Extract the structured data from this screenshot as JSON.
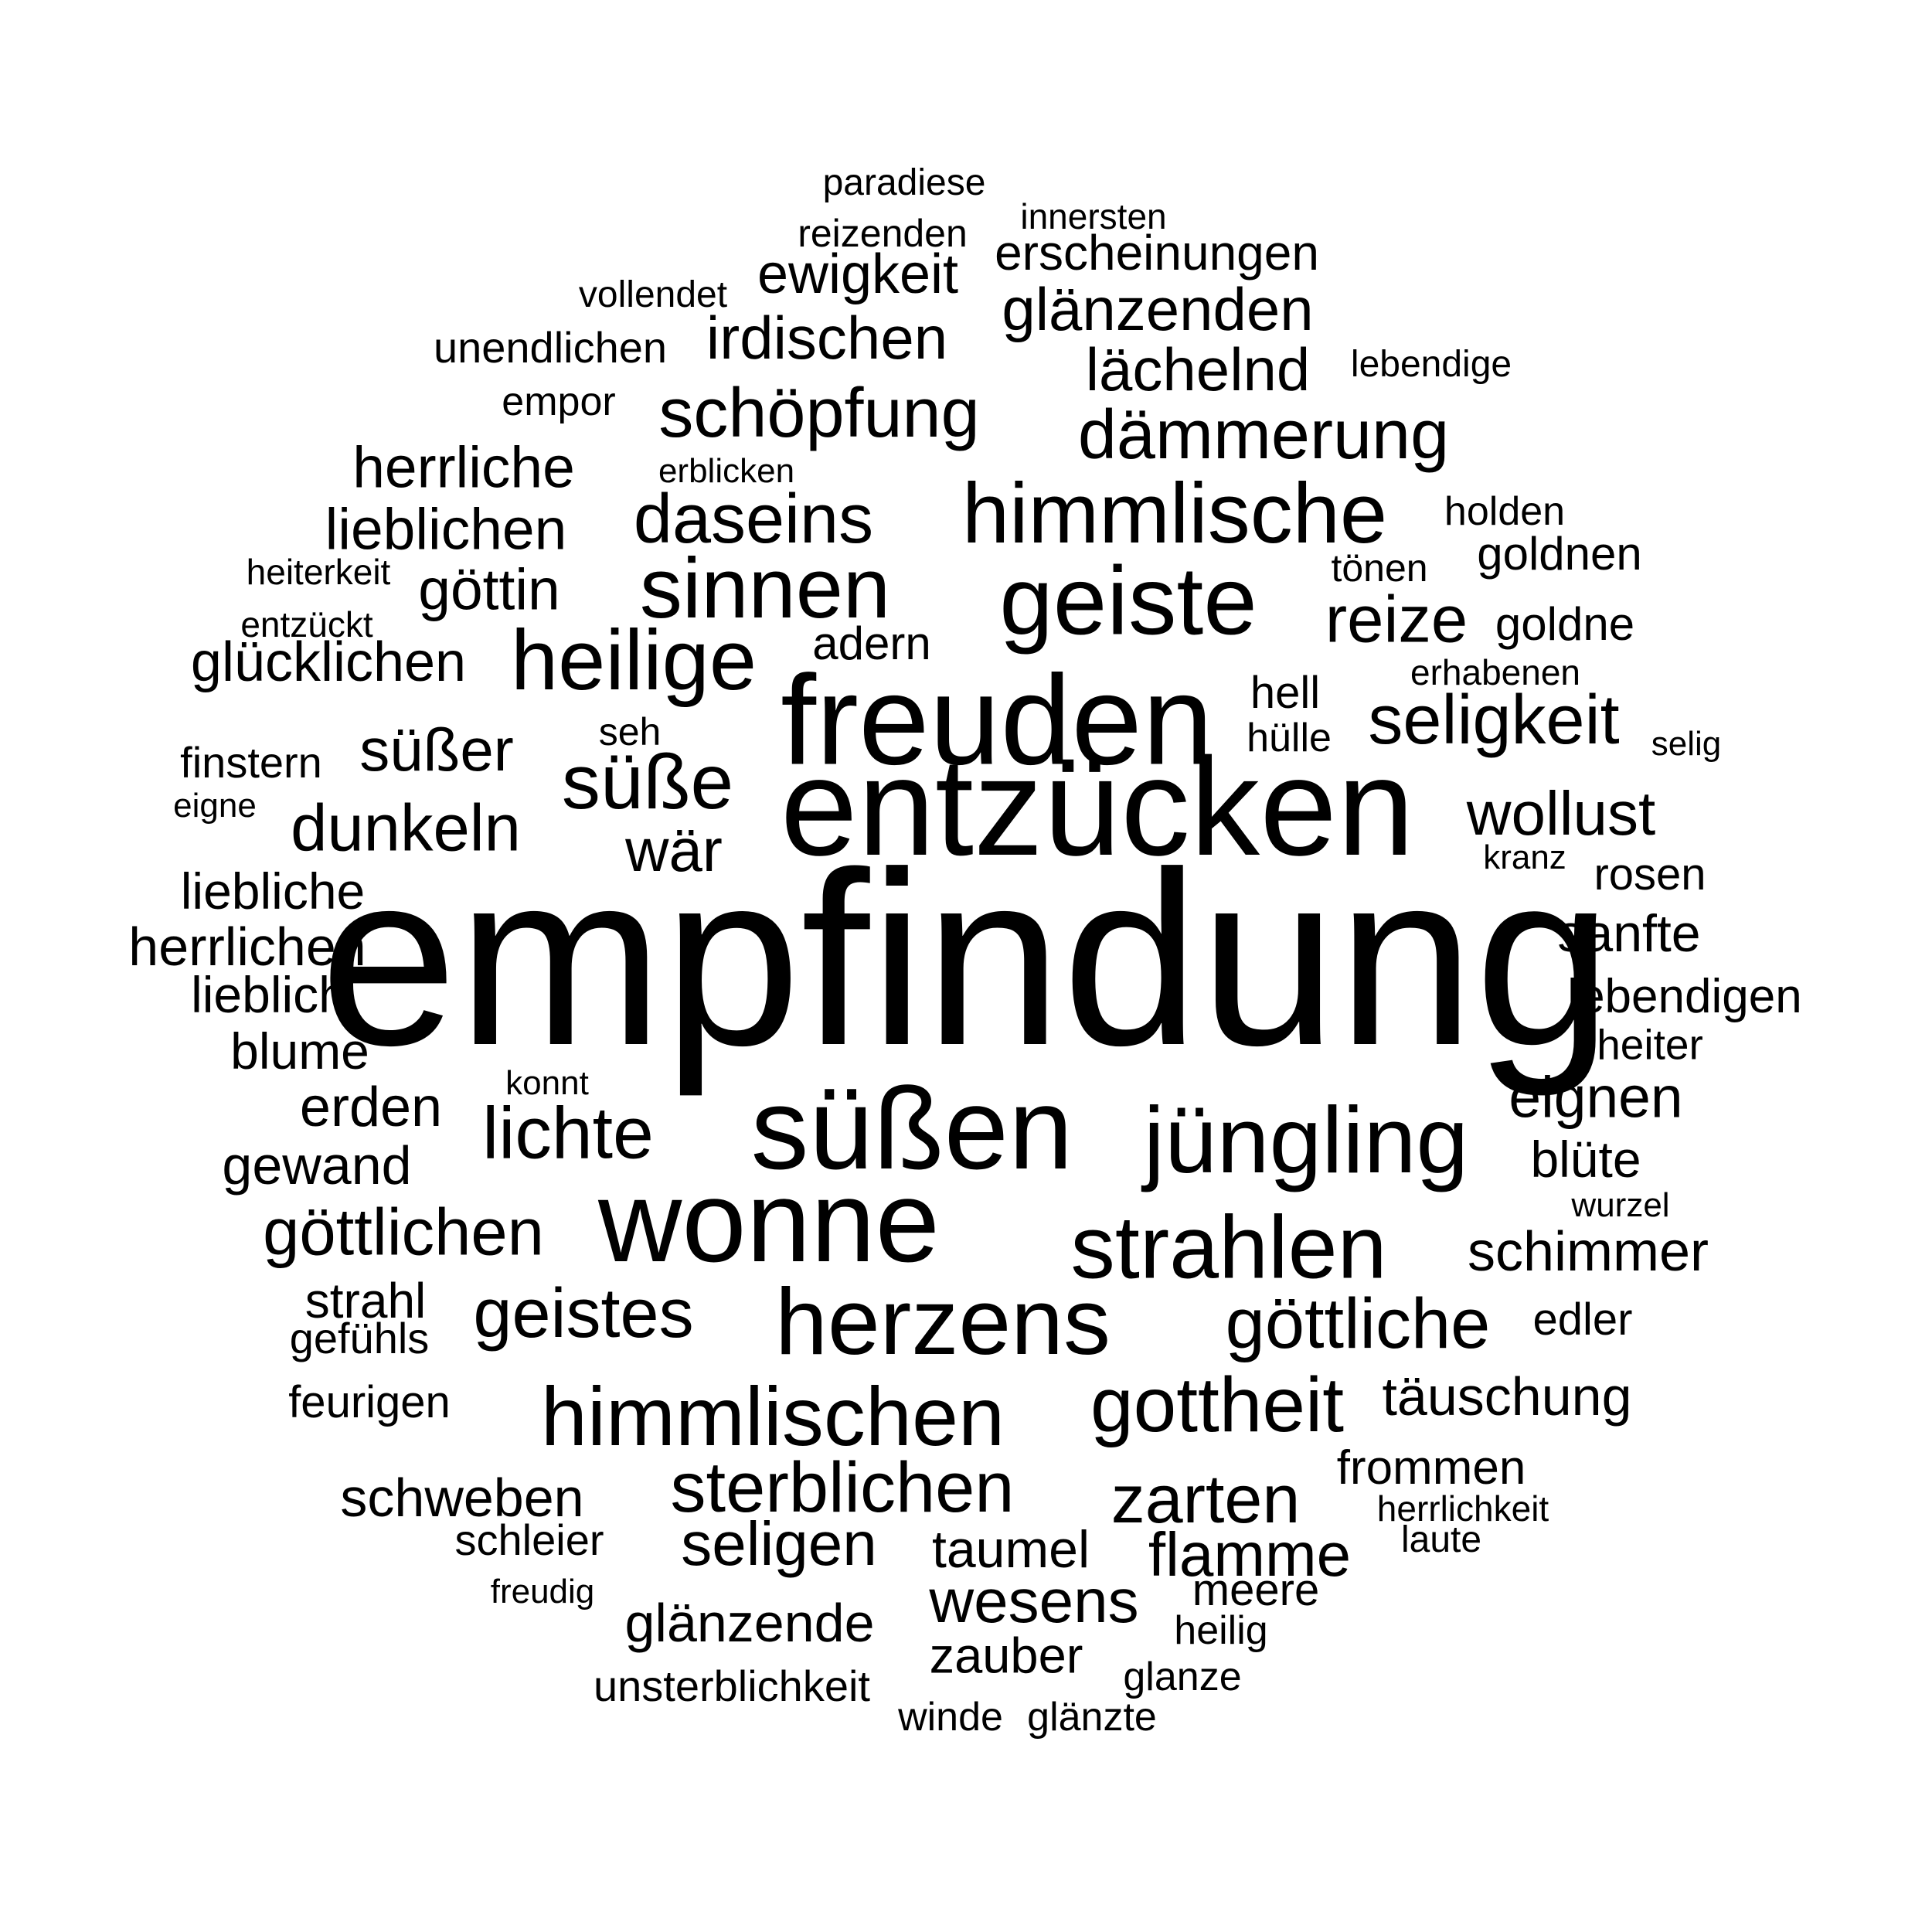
{
  "text_color": "#000000",
  "background": "#ffffff",
  "words": [
    "empfindung",
    "entzücken",
    "freuden",
    "süßen",
    "wonne",
    "jüngling",
    "herzens",
    "geiste",
    "himmlische",
    "strahlen",
    "himmlischen",
    "heilige",
    "sinnen",
    "süße",
    "daseins",
    "gottheit",
    "sterblichen",
    "göttliche",
    "lichte",
    "schöpfung",
    "seligkeit",
    "dämmerung",
    "geistes",
    "zarten",
    "dunkeln",
    "göttlichen",
    "reize",
    "seligen",
    "wesens",
    "flamme",
    "glänzenden",
    "wollust",
    "irdischen",
    "ewigkeit",
    "lächelnd",
    "wär",
    "süßer",
    "glänzende",
    "herrliche",
    "eignen",
    "täuschung",
    "lieblichen",
    "göttin",
    "schimmer",
    "glücklichen",
    "taumel",
    "zauber",
    "schweben",
    "erden",
    "sanfte",
    "herrlichen",
    "erscheinungen",
    "lebendigen",
    "gewand",
    "liebliche",
    "goldnen",
    "lieblich",
    "blume",
    "blüte",
    "adern",
    "frommen",
    "meere",
    "unsterblichkeit",
    "strahl",
    "unendlichen",
    "feurigen",
    "goldne",
    "rosen",
    "edler",
    "finstern",
    "hell",
    "schleier",
    "gefühls",
    "holden",
    "heiter",
    "empor",
    "paradiese",
    "reizenden",
    "vollendet",
    "heilig",
    "winde",
    "glänzte",
    "glanze",
    "hülle",
    "tönen",
    "lebendige",
    "herrlichkeit",
    "innersten",
    "laute",
    "erhabenen",
    "heiterkeit",
    "entzückt",
    "erblicken",
    "seh",
    "wurzel",
    "freudig",
    "konnt",
    "selig",
    "eigne",
    "kranz"
  ]
}
